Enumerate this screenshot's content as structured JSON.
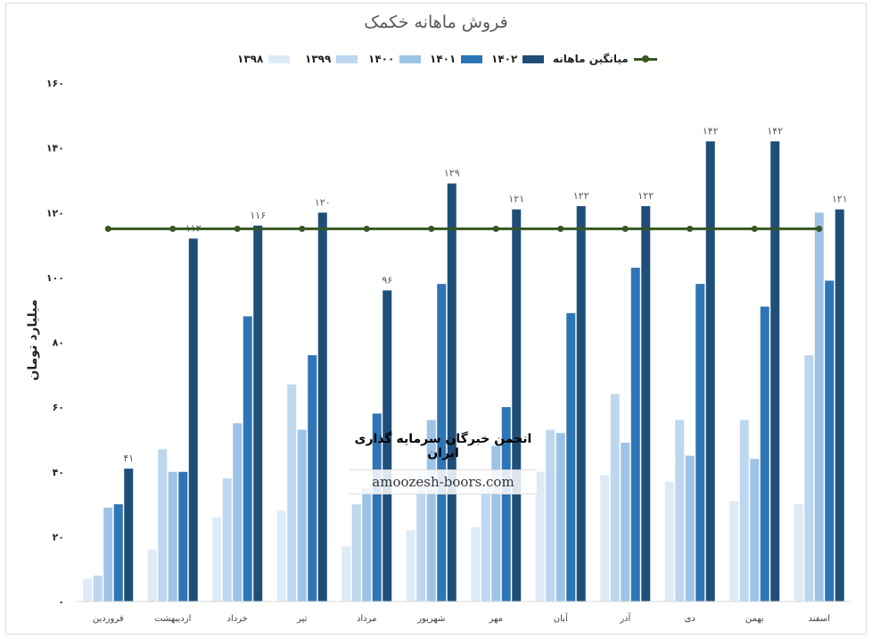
{
  "chart_data": {
    "type": "bar",
    "title": "فروش ماهانه خکمک",
    "ylabel": "میلیارد تومان",
    "xlabel": "",
    "ylim": [
      0,
      160
    ],
    "yticks": [
      "۰",
      "۲۰",
      "۴۰",
      "۶۰",
      "۸۰",
      "۱۰۰",
      "۱۲۰",
      "۱۴۰",
      "۱۶۰"
    ],
    "ytick_values": [
      0,
      20,
      40,
      60,
      80,
      100,
      120,
      140,
      160
    ],
    "grid": false,
    "legend_position": "top",
    "categories": [
      "فروردین",
      "اردیبهشت",
      "خرداد",
      "تیر",
      "مرداد",
      "شهریور",
      "مهر",
      "آبان",
      "آذر",
      "دی",
      "بهمن",
      "اسفند"
    ],
    "series": [
      {
        "name": "۱۳۹۸",
        "color": "#ddebf7",
        "values": [
          7,
          16,
          26,
          28,
          17,
          22,
          23,
          40,
          39,
          37,
          31,
          30
        ]
      },
      {
        "name": "۱۳۹۹",
        "color": "#bdd7ee",
        "values": [
          8,
          47,
          38,
          67,
          30,
          39,
          35,
          53,
          64,
          56,
          56,
          76
        ]
      },
      {
        "name": "۱۴۰۰",
        "color": "#9dc3e6",
        "values": [
          29,
          40,
          55,
          53,
          35,
          56,
          48,
          52,
          49,
          45,
          44,
          120
        ]
      },
      {
        "name": "۱۴۰۱",
        "color": "#2e75b6",
        "values": [
          30,
          40,
          88,
          76,
          58,
          98,
          60,
          89,
          103,
          98,
          91,
          99
        ]
      },
      {
        "name": "۱۴۰۲",
        "color": "#1f4e79",
        "values": [
          41,
          112,
          116,
          120,
          96,
          129,
          121,
          122,
          122,
          142,
          142,
          121
        ],
        "labels": [
          "۴۱",
          "۱۱۲",
          "۱۱۶",
          "۱۲۰",
          "۹۶",
          "۱۲۹",
          "۱۲۱",
          "۱۲۲",
          "۱۲۲",
          "۱۴۲",
          "۱۴۲",
          "۱۲۱"
        ]
      }
    ],
    "average_line": {
      "name": "میانگین ماهانه",
      "color": "#375623",
      "value": 115
    }
  },
  "watermark": {
    "title": "انجمن خبرگان سرمایه گذاری ایران",
    "url": "amoozesh-boors.com"
  }
}
